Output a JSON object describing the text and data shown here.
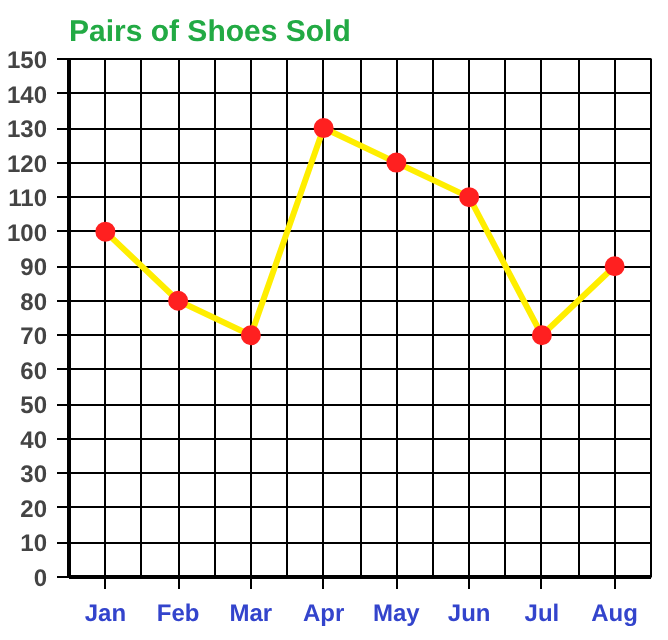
{
  "chart_data": {
    "type": "line",
    "title": "Pairs of Shoes Sold",
    "categories": [
      "Jan",
      "Feb",
      "Mar",
      "Apr",
      "May",
      "Jun",
      "Jul",
      "Aug"
    ],
    "series": [
      {
        "color": "#ffee00",
        "values": [
          100,
          80,
          70,
          130,
          120,
          110,
          70,
          90
        ]
      }
    ],
    "marker": "circle",
    "line_style": "solid",
    "grid": true,
    "ylim": [
      0,
      150
    ],
    "yticks": [
      0,
      10,
      20,
      30,
      40,
      50,
      60,
      70,
      80,
      90,
      100,
      110,
      120,
      130,
      140,
      150
    ]
  }
}
